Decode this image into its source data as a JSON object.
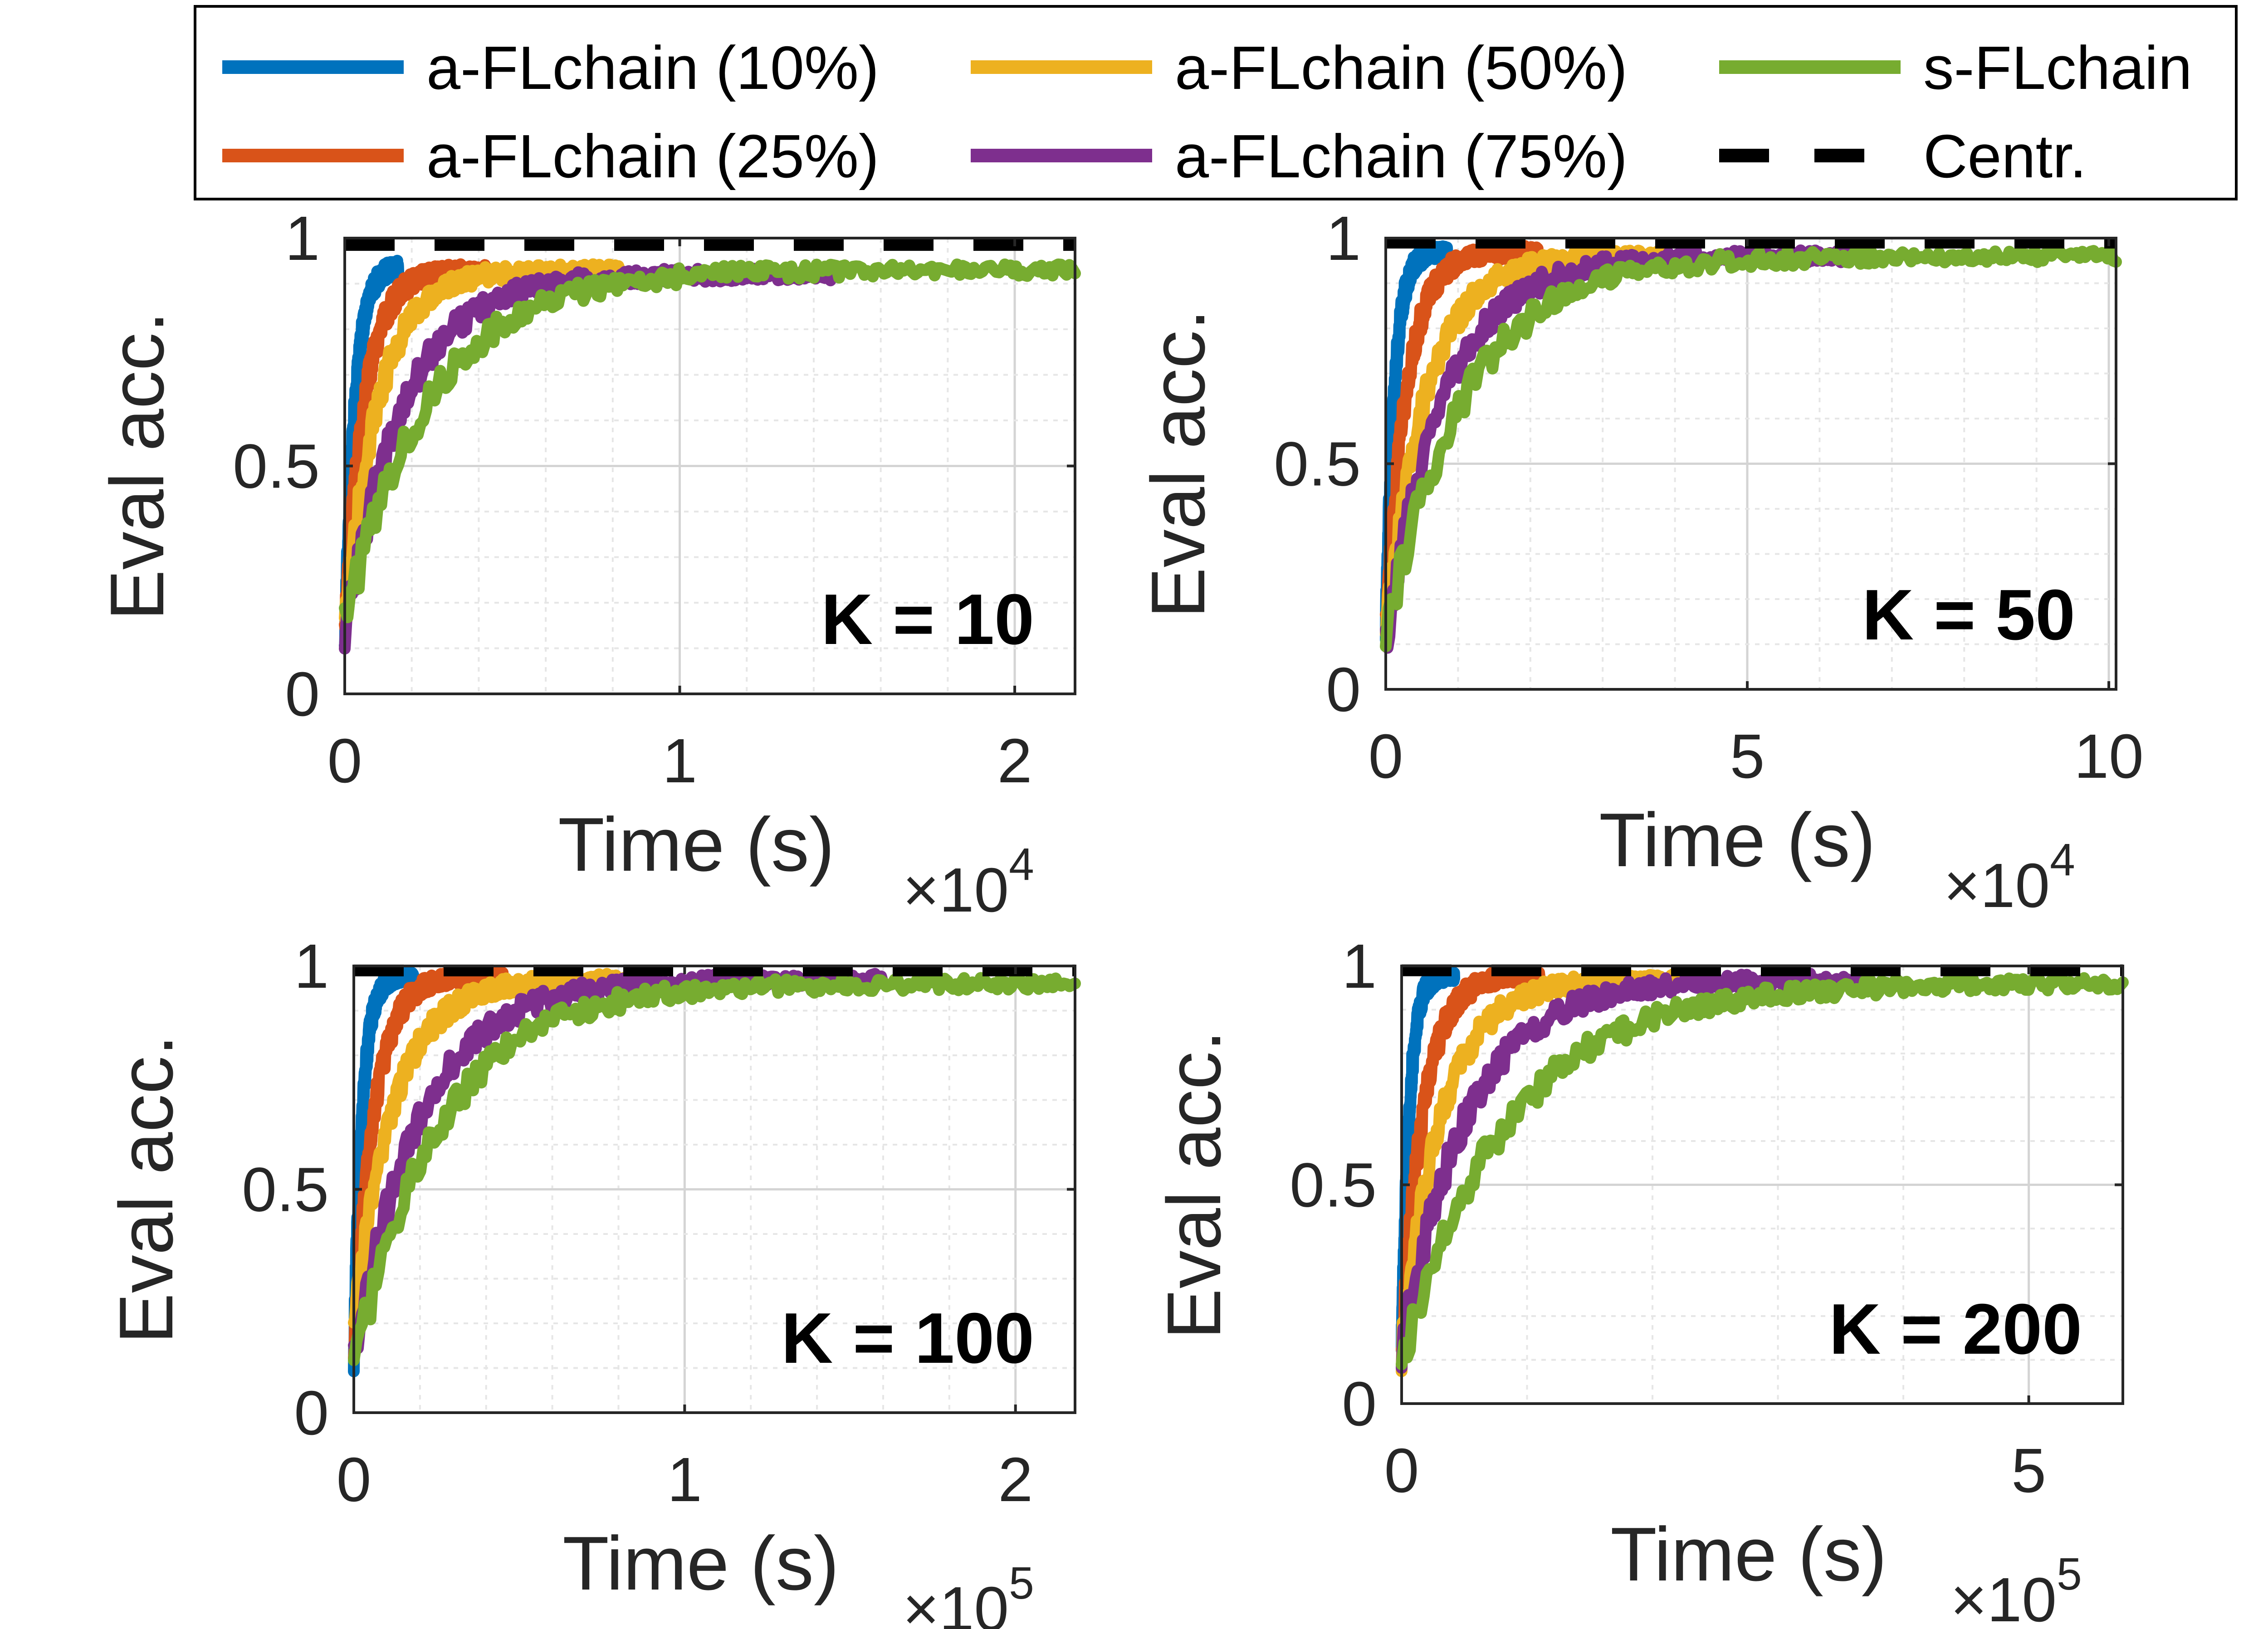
{
  "legend": {
    "entries": [
      {
        "label": "a-FLchain (10%)",
        "color": "#0072BD",
        "dash": false
      },
      {
        "label": "a-FLchain (50%)",
        "color": "#EDB120",
        "dash": false
      },
      {
        "label": "s-FLchain",
        "color": "#77AC30",
        "dash": false
      },
      {
        "label": "a-FLchain (25%)",
        "color": "#D95319",
        "dash": false
      },
      {
        "label": "a-FLchain (75%)",
        "color": "#7E2F8E",
        "dash": false
      },
      {
        "label": "Centr.",
        "color": "#000000",
        "dash": true
      }
    ]
  },
  "chart_data": [
    {
      "type": "line",
      "panel_label": "K = 10",
      "xlabel": "Time (s)",
      "ylabel": "Eval acc.",
      "x_exponent_base": "×10",
      "x_exponent": "4",
      "xlim": [
        0,
        2.18
      ],
      "ylim": [
        0,
        1
      ],
      "xticks": [
        0,
        1,
        2
      ],
      "xtick_labels": [
        "0",
        "1",
        "2"
      ],
      "yticks": [
        0,
        0.5,
        1
      ],
      "ytick_labels": [
        "0",
        "0.5",
        "1"
      ],
      "grid": true,
      "centr_value": 0.985,
      "series": [
        {
          "name": "a-FLchain (10%)",
          "color": "#0072BD",
          "t_end": 0.16,
          "start": 0.1,
          "plateau": 0.94,
          "tau": 0.03
        },
        {
          "name": "a-FLchain (25%)",
          "color": "#D95319",
          "t_end": 0.42,
          "start": 0.15,
          "plateau": 0.93,
          "tau": 0.06
        },
        {
          "name": "a-FLchain (50%)",
          "color": "#EDB120",
          "t_end": 0.82,
          "start": 0.14,
          "plateau": 0.93,
          "tau": 0.1
        },
        {
          "name": "a-FLchain (75%)",
          "color": "#7E2F8E",
          "t_end": 1.45,
          "start": 0.12,
          "plateau": 0.92,
          "tau": 0.17
        },
        {
          "name": "s-FLchain",
          "color": "#77AC30",
          "t_end": 2.18,
          "start": 0.15,
          "plateau": 0.93,
          "tau": 0.25
        }
      ]
    },
    {
      "type": "line",
      "panel_label": "K = 50",
      "xlabel": "Time (s)",
      "ylabel": "Eval acc.",
      "x_exponent_base": "×10",
      "x_exponent": "4",
      "xlim": [
        0,
        10.1
      ],
      "ylim": [
        0,
        1
      ],
      "xticks": [
        0,
        5,
        10
      ],
      "xtick_labels": [
        "0",
        "5",
        "10"
      ],
      "yticks": [
        0,
        0.5,
        1
      ],
      "ytick_labels": [
        "0",
        "0.5",
        "1"
      ],
      "grid": true,
      "centr_value": 0.99,
      "series": [
        {
          "name": "a-FLchain (10%)",
          "color": "#0072BD",
          "t_end": 0.85,
          "start": 0.14,
          "plateau": 0.97,
          "tau": 0.12
        },
        {
          "name": "a-FLchain (25%)",
          "color": "#D95319",
          "t_end": 2.1,
          "start": 0.12,
          "plateau": 0.97,
          "tau": 0.28
        },
        {
          "name": "a-FLchain (50%)",
          "color": "#EDB120",
          "t_end": 3.9,
          "start": 0.12,
          "plateau": 0.96,
          "tau": 0.55
        },
        {
          "name": "a-FLchain (75%)",
          "color": "#7E2F8E",
          "t_end": 6.6,
          "start": 0.1,
          "plateau": 0.96,
          "tau": 0.8
        },
        {
          "name": "s-FLchain",
          "color": "#77AC30",
          "t_end": 10.1,
          "start": 0.12,
          "plateau": 0.96,
          "tau": 1.1
        }
      ]
    },
    {
      "type": "line",
      "panel_label": "K = 100",
      "xlabel": "Time (s)",
      "ylabel": "Eval acc.",
      "x_exponent_base": "×10",
      "x_exponent": "5",
      "xlim": [
        0,
        2.18
      ],
      "ylim": [
        0,
        1
      ],
      "xticks": [
        0,
        1,
        2
      ],
      "xtick_labels": [
        "0",
        "1",
        "2"
      ],
      "yticks": [
        0,
        0.5,
        1
      ],
      "ytick_labels": [
        "0",
        "0.5",
        "1"
      ],
      "grid": true,
      "centr_value": 0.99,
      "series": [
        {
          "name": "a-FLchain (10%)",
          "color": "#0072BD",
          "t_end": 0.18,
          "start": 0.12,
          "plateau": 0.98,
          "tau": 0.025
        },
        {
          "name": "a-FLchain (25%)",
          "color": "#D95319",
          "t_end": 0.45,
          "start": 0.12,
          "plateau": 0.98,
          "tau": 0.06
        },
        {
          "name": "a-FLchain (50%)",
          "color": "#EDB120",
          "t_end": 0.88,
          "start": 0.2,
          "plateau": 0.97,
          "tau": 0.12
        },
        {
          "name": "a-FLchain (75%)",
          "color": "#7E2F8E",
          "t_end": 1.6,
          "start": 0.12,
          "plateau": 0.97,
          "tau": 0.2
        },
        {
          "name": "s-FLchain",
          "color": "#77AC30",
          "t_end": 2.18,
          "start": 0.1,
          "plateau": 0.96,
          "tau": 0.26
        }
      ]
    },
    {
      "type": "line",
      "panel_label": "K = 200",
      "xlabel": "Time (s)",
      "ylabel": "Eval acc.",
      "x_exponent_base": "×10",
      "x_exponent": "5",
      "xlim": [
        0,
        5.75
      ],
      "ylim": [
        0,
        1
      ],
      "xticks": [
        0,
        5
      ],
      "xtick_labels": [
        "0",
        "5"
      ],
      "yticks": [
        0,
        0.5,
        1
      ],
      "ytick_labels": [
        "0",
        "0.5",
        "1"
      ],
      "grid": true,
      "centr_value": 0.99,
      "series": [
        {
          "name": "a-FLchain (10%)",
          "color": "#0072BD",
          "t_end": 0.42,
          "start": 0.12,
          "plateau": 0.98,
          "tau": 0.06
        },
        {
          "name": "a-FLchain (25%)",
          "color": "#D95319",
          "t_end": 1.1,
          "start": 0.12,
          "plateau": 0.98,
          "tau": 0.17
        },
        {
          "name": "a-FLchain (50%)",
          "color": "#EDB120",
          "t_end": 2.2,
          "start": 0.12,
          "plateau": 0.97,
          "tau": 0.32
        },
        {
          "name": "a-FLchain (75%)",
          "color": "#7E2F8E",
          "t_end": 3.65,
          "start": 0.12,
          "plateau": 0.97,
          "tau": 0.52
        },
        {
          "name": "s-FLchain",
          "color": "#77AC30",
          "t_end": 5.75,
          "start": 0.1,
          "plateau": 0.96,
          "tau": 0.85
        }
      ]
    }
  ]
}
